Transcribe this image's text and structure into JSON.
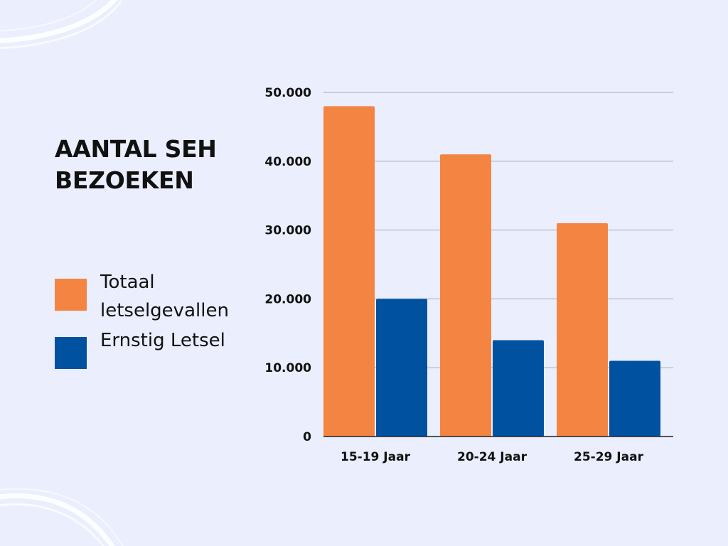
{
  "colors": {
    "background": "#eaeefd",
    "orange": "#f48442",
    "blue": "#0052a0",
    "grid": "#a9acb5"
  },
  "chart_data": {
    "type": "bar",
    "title": "AANTAL SEH BEZOEKEN",
    "categories": [
      "15-19 Jaar",
      "20-24 Jaar",
      "25-29 Jaar"
    ],
    "series": [
      {
        "name": "Totaal letselgevallen",
        "color": "#f48442",
        "values": [
          48000,
          41000,
          31000
        ]
      },
      {
        "name": "Ernstig Letsel",
        "color": "#0052a0",
        "values": [
          20000,
          14000,
          11000
        ]
      }
    ],
    "ylim": [
      0,
      50000
    ],
    "yticks": [
      0,
      10000,
      20000,
      30000,
      40000,
      50000
    ],
    "ytick_labels": [
      "0",
      "10.000",
      "20.000",
      "30.000",
      "40.000",
      "50.000"
    ],
    "grid": true,
    "legend_position": "left"
  }
}
